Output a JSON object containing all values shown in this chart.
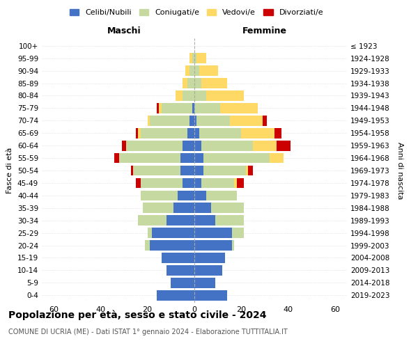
{
  "age_groups": [
    "0-4",
    "5-9",
    "10-14",
    "15-19",
    "20-24",
    "25-29",
    "30-34",
    "35-39",
    "40-44",
    "45-49",
    "50-54",
    "55-59",
    "60-64",
    "65-69",
    "70-74",
    "75-79",
    "80-84",
    "85-89",
    "90-94",
    "95-99",
    "100+"
  ],
  "birth_years": [
    "2019-2023",
    "2014-2018",
    "2009-2013",
    "2004-2008",
    "1999-2003",
    "1994-1998",
    "1989-1993",
    "1984-1988",
    "1979-1983",
    "1974-1978",
    "1969-1973",
    "1964-1968",
    "1959-1963",
    "1954-1958",
    "1949-1953",
    "1944-1948",
    "1939-1943",
    "1934-1938",
    "1929-1933",
    "1924-1928",
    "≤ 1923"
  ],
  "maschi": {
    "celibi": [
      16,
      10,
      12,
      14,
      19,
      18,
      12,
      9,
      7,
      5,
      6,
      6,
      5,
      3,
      2,
      1,
      0,
      0,
      0,
      0,
      0
    ],
    "coniugati": [
      0,
      0,
      0,
      0,
      2,
      2,
      12,
      13,
      16,
      18,
      20,
      26,
      24,
      20,
      17,
      13,
      5,
      3,
      2,
      1,
      0
    ],
    "vedovi": [
      0,
      0,
      0,
      0,
      0,
      0,
      0,
      0,
      0,
      0,
      0,
      0,
      0,
      1,
      1,
      1,
      3,
      2,
      2,
      1,
      0
    ],
    "divorziati": [
      0,
      0,
      0,
      0,
      0,
      0,
      0,
      0,
      0,
      2,
      1,
      2,
      2,
      1,
      0,
      1,
      0,
      0,
      0,
      0,
      0
    ]
  },
  "femmine": {
    "nubili": [
      14,
      9,
      12,
      13,
      16,
      16,
      9,
      7,
      5,
      3,
      4,
      4,
      3,
      2,
      1,
      0,
      0,
      0,
      0,
      0,
      0
    ],
    "coniugate": [
      0,
      0,
      0,
      0,
      1,
      5,
      12,
      14,
      13,
      14,
      18,
      28,
      22,
      18,
      14,
      11,
      5,
      3,
      2,
      1,
      0
    ],
    "vedove": [
      0,
      0,
      0,
      0,
      0,
      0,
      0,
      0,
      0,
      1,
      1,
      6,
      10,
      14,
      14,
      16,
      16,
      11,
      8,
      4,
      0
    ],
    "divorziate": [
      0,
      0,
      0,
      0,
      0,
      0,
      0,
      0,
      0,
      3,
      2,
      0,
      6,
      3,
      2,
      0,
      0,
      0,
      0,
      0,
      0
    ]
  },
  "colors": {
    "celibi": "#4472c4",
    "coniugati": "#c5d9a0",
    "vedovi": "#ffd966",
    "divorziati": "#cc0000"
  },
  "xlim": 65,
  "title": "Popolazione per età, sesso e stato civile - 2024",
  "subtitle": "COMUNE DI UCRIA (ME) - Dati ISTAT 1° gennaio 2024 - Elaborazione TUTTITALIA.IT",
  "ylabel": "Fasce di età",
  "ylabel_right": "Anni di nascita",
  "legend_labels": [
    "Celibi/Nubili",
    "Coniugati/e",
    "Vedovi/e",
    "Divorziati/e"
  ],
  "maschi_label": "Maschi",
  "femmine_label": "Femmine"
}
